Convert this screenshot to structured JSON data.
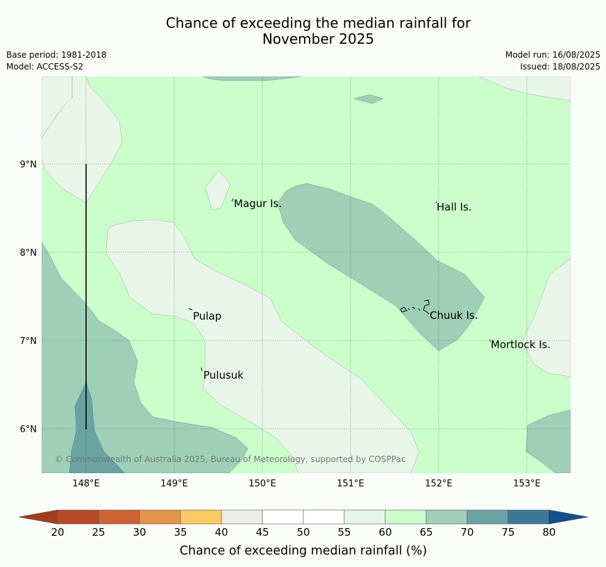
{
  "header": {
    "title_line1": "Chance of exceeding the median rainfall for",
    "title_line2": "November 2025",
    "base_period": "Base period: 1981-2018",
    "model": "Model: ACCESS-S2",
    "model_run": "Model run: 16/08/2025",
    "issued": "Issued: 18/08/2025"
  },
  "map": {
    "lon_labels": [
      "148°E",
      "149°E",
      "150°E",
      "151°E",
      "152°E",
      "153°E"
    ],
    "lat_labels": [
      "9°N",
      "8°N",
      "7°N",
      "6°N"
    ],
    "places": {
      "magur": "Magur Is.",
      "hall": "Hall Is.",
      "pulap": "Pulap",
      "chuuk": "Chuuk Is.",
      "mortlock": "Mortlock Is.",
      "pulusuk": "Pulusuk"
    },
    "copyright": "© Commonwealth of Australia 2025, Bureau of Meteorology, supported by COSPPac",
    "colors": {
      "c40_45": "#ececea",
      "c55_60": "#e9f5e9",
      "c60_65": "#ccfecb",
      "c65_70": "#9ecfb7",
      "c70_75": "#6aa3a4"
    }
  },
  "colorbar": {
    "title": "Chance of exceeding median rainfall (%)",
    "ticks": [
      "20",
      "25",
      "30",
      "35",
      "40",
      "45",
      "50",
      "55",
      "60",
      "65",
      "70",
      "75",
      "80"
    ],
    "colors": [
      "#a63d20",
      "#b84828",
      "#cf6233",
      "#e29448",
      "#fdcb63",
      "#ececea",
      "#ffffff",
      "#ffffff",
      "#e9f5e9",
      "#ccfecb",
      "#9ecfb7",
      "#6aa3a4",
      "#3e7897",
      "#15508a"
    ]
  }
}
